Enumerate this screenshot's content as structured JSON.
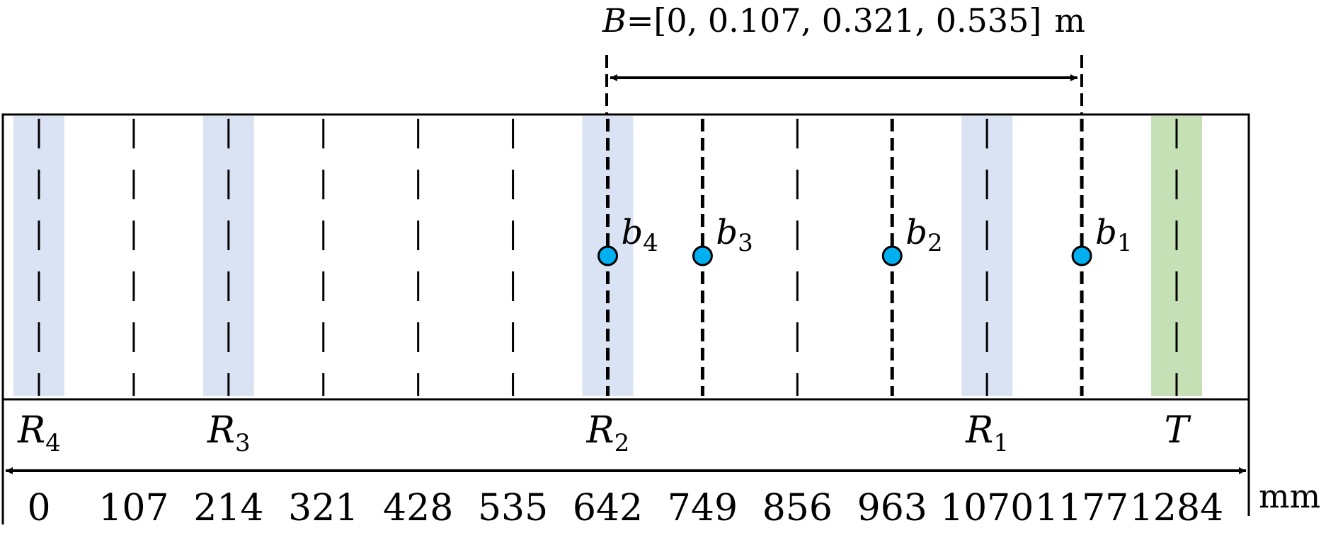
{
  "baseline": {
    "name_symbol": "B",
    "values_text": "=[0, 0.107, 0.321, 0.535]",
    "unit": "m"
  },
  "axis": {
    "unit": "mm",
    "positions_mm": [
      0,
      107,
      214,
      321,
      428,
      535,
      642,
      749,
      856,
      963,
      1070,
      1177,
      1284
    ],
    "tick_labels": [
      "0",
      "107",
      "214",
      "321",
      "428",
      "535",
      "642",
      "749",
      "856",
      "963",
      "1070",
      "1177",
      "1284"
    ]
  },
  "elements": {
    "receivers": [
      {
        "symbol": "R",
        "sub": "4",
        "position_mm": 0
      },
      {
        "symbol": "R",
        "sub": "3",
        "position_mm": 214
      },
      {
        "symbol": "R",
        "sub": "2",
        "position_mm": 642
      },
      {
        "symbol": "R",
        "sub": "1",
        "position_mm": 1070
      }
    ],
    "transmitter": {
      "symbol": "T",
      "position_mm": 1284
    },
    "receiver_highlight_color": "#dae3f3",
    "transmitter_highlight_color": "#c5e0b4"
  },
  "points": {
    "color": "#00b0f0",
    "items": [
      {
        "symbol": "b",
        "sub": "4",
        "position_mm": 642
      },
      {
        "symbol": "b",
        "sub": "3",
        "position_mm": 749
      },
      {
        "symbol": "b",
        "sub": "2",
        "position_mm": 963
      },
      {
        "symbol": "b",
        "sub": "1",
        "position_mm": 1177
      }
    ]
  }
}
